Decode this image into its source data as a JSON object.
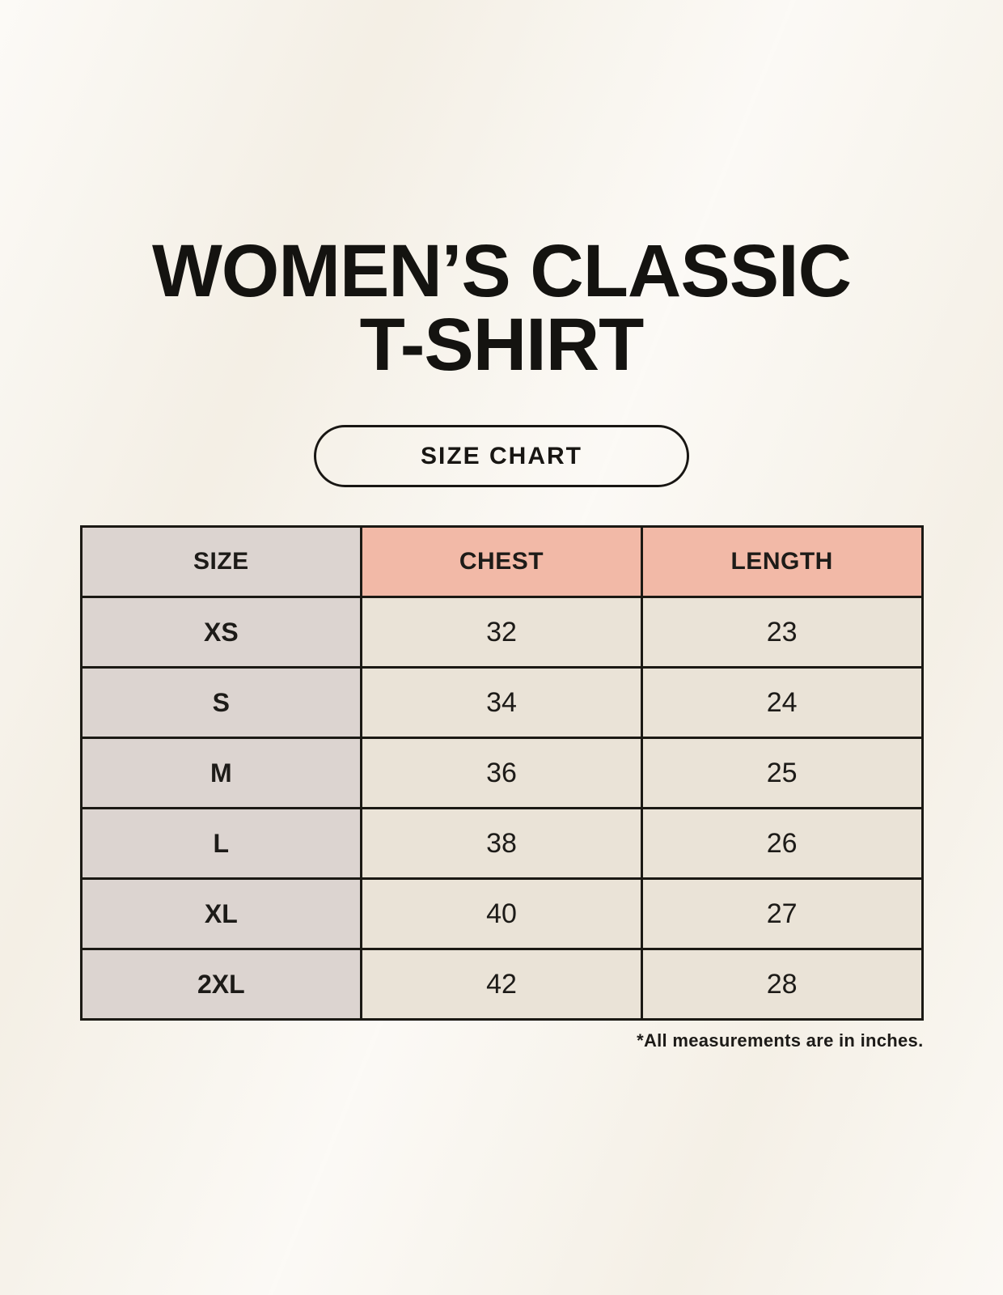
{
  "header": {
    "title_line1": "WOMEN’S CLASSIC",
    "title_line2": "T-SHIRT",
    "size_chart_button_label": "SIZE CHART"
  },
  "chart_data": {
    "type": "table",
    "title": "WOMEN’S CLASSIC T-SHIRT SIZE CHART",
    "columns": [
      "SIZE",
      "CHEST",
      "LENGTH"
    ],
    "rows": [
      [
        "XS",
        "32",
        "23"
      ],
      [
        "S",
        "34",
        "24"
      ],
      [
        "M",
        "36",
        "25"
      ],
      [
        "L",
        "38",
        "26"
      ],
      [
        "XL",
        "40",
        "27"
      ],
      [
        "2XL",
        "42",
        "28"
      ]
    ],
    "annotation": "*All measurements are in inches.",
    "units": "inches"
  },
  "colors": {
    "background": "#f8f4ec",
    "header_pink": "#f2b9a7",
    "size_column_gray": "#dcd4d0",
    "data_cell_beige": "#eae3d7",
    "border_black": "#1b1914",
    "text": "#1d1b18"
  }
}
